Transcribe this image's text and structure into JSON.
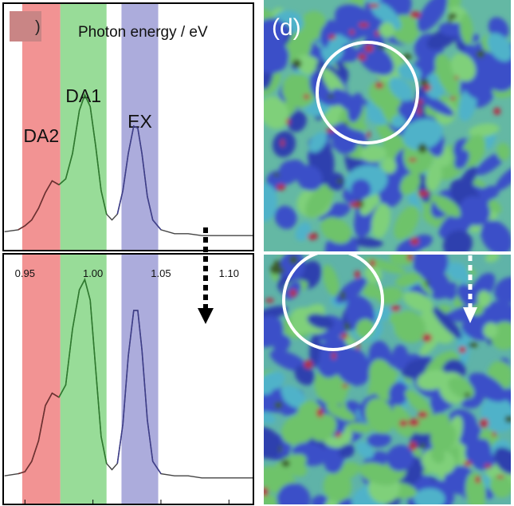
{
  "chart_data": [
    {
      "type": "line",
      "panel": "top",
      "xlabel": "Photon energy / eV",
      "x_tick_labels_shown": false,
      "xlim": [
        0.934,
        1.118
      ],
      "ylim": [
        0,
        1
      ],
      "bands": [
        {
          "label": "DA2",
          "range": [
            0.948,
            0.976
          ],
          "color": "#f08080"
        },
        {
          "label": "DA1",
          "range": [
            0.976,
            1.01
          ],
          "color": "#86d686"
        },
        {
          "label": "EX",
          "range": [
            1.021,
            1.048
          ],
          "color": "#9d9dd6"
        }
      ],
      "series": [
        {
          "color": "#3c7a3c",
          "x": [
            0.935,
            0.945,
            0.95,
            0.955,
            0.96,
            0.965,
            0.97,
            0.975,
            0.98,
            0.985,
            0.99,
            0.994,
            0.998,
            1.002,
            1.006,
            1.01,
            1.014,
            1.018,
            1.022,
            1.026,
            1.03,
            1.033,
            1.036,
            1.04,
            1.044,
            1.05,
            1.06,
            1.07,
            1.08,
            1.09,
            1.1,
            1.11,
            1.118
          ],
          "y": [
            0.06,
            0.07,
            0.09,
            0.12,
            0.18,
            0.26,
            0.32,
            0.3,
            0.33,
            0.46,
            0.68,
            0.76,
            0.7,
            0.5,
            0.27,
            0.15,
            0.12,
            0.15,
            0.27,
            0.46,
            0.6,
            0.59,
            0.46,
            0.24,
            0.12,
            0.07,
            0.05,
            0.05,
            0.04,
            0.04,
            0.04,
            0.04,
            0.04
          ]
        }
      ]
    },
    {
      "type": "line",
      "panel": "bottom",
      "categories_label": "x ticks",
      "x_ticks": [
        "0.95",
        "1.00",
        "1.05",
        "1.10"
      ],
      "x_tick_values": [
        0.95,
        1.0,
        1.05,
        1.1
      ],
      "xlim": [
        0.934,
        1.118
      ],
      "ylim": [
        0,
        1
      ],
      "bands": [
        {
          "label": "",
          "range": [
            0.948,
            0.976
          ],
          "color": "#f08080"
        },
        {
          "label": "",
          "range": [
            0.976,
            1.01
          ],
          "color": "#86d686"
        },
        {
          "label": "",
          "range": [
            1.021,
            1.048
          ],
          "color": "#9d9dd6"
        }
      ],
      "series": [
        {
          "color": "#3c7a3c",
          "x": [
            0.935,
            0.945,
            0.95,
            0.955,
            0.96,
            0.965,
            0.97,
            0.975,
            0.98,
            0.985,
            0.99,
            0.994,
            0.998,
            1.002,
            1.006,
            1.01,
            1.014,
            1.018,
            1.022,
            1.026,
            1.03,
            1.033,
            1.036,
            1.04,
            1.044,
            1.05,
            1.06,
            1.07,
            1.08,
            1.09,
            1.1,
            1.11,
            1.118
          ],
          "y": [
            0.03,
            0.04,
            0.05,
            0.1,
            0.2,
            0.37,
            0.43,
            0.41,
            0.47,
            0.74,
            0.93,
            0.98,
            0.88,
            0.55,
            0.22,
            0.09,
            0.06,
            0.09,
            0.28,
            0.61,
            0.83,
            0.83,
            0.64,
            0.3,
            0.1,
            0.04,
            0.03,
            0.03,
            0.02,
            0.02,
            0.02,
            0.02,
            0.02
          ]
        }
      ]
    }
  ],
  "panel_label": "(d)",
  "colors": {
    "arrow": "#000000",
    "map_arrow": "#ffffff",
    "circle": "#ffffff",
    "map_blue": "#3b4fc8",
    "map_green": "#6ec36a",
    "map_cyan": "#4fb2c9",
    "map_red": "#b0304a"
  }
}
